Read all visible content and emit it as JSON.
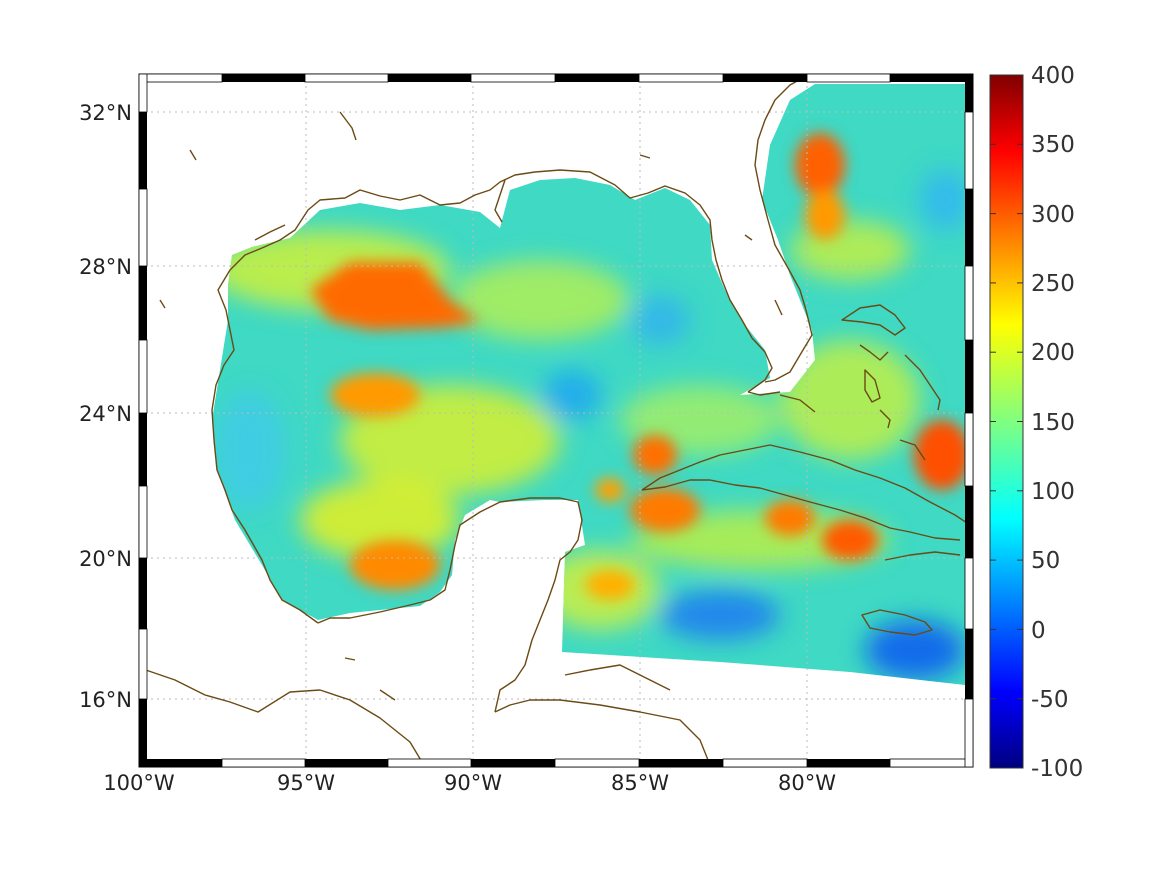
{
  "map": {
    "lon_range": [
      -100,
      -75.5
    ],
    "lat_range": [
      14.3,
      33
    ],
    "x_ticks": [
      {
        "lon": -100,
        "label": "100°W"
      },
      {
        "lon": -95,
        "label": "95°W"
      },
      {
        "lon": -90,
        "label": "90°W"
      },
      {
        "lon": -85,
        "label": "85°W"
      },
      {
        "lon": -80,
        "label": "80°W"
      }
    ],
    "y_ticks": [
      {
        "lat": 32,
        "label": "32°N"
      },
      {
        "lat": 28,
        "label": "28°N"
      },
      {
        "lat": 24,
        "label": "24°N"
      },
      {
        "lat": 20,
        "label": "20°N"
      },
      {
        "lat": 16,
        "label": "16°N"
      }
    ],
    "grid": true,
    "coast_color": "#6b4a14",
    "colormap": "jet",
    "field_hotspots": [
      {
        "name": "western Gulf maximum",
        "lon": -92.7,
        "lat": 27.2,
        "value": 290
      },
      {
        "name": "central-west patch",
        "lon": -93.2,
        "lat": 24.5,
        "value": 245
      },
      {
        "name": "Bay of Campeche",
        "lon": -92.2,
        "lat": 19.8,
        "value": 245
      },
      {
        "name": "off Georgia/Carolina",
        "lon": -79.6,
        "lat": 30.3,
        "value": 275
      },
      {
        "name": "west Cuba",
        "lon": -84.6,
        "lat": 22.6,
        "value": 260
      },
      {
        "name": "south of Cuba",
        "lon": -84.0,
        "lat": 21.3,
        "value": 255
      },
      {
        "name": "near Hispaniola",
        "lon": -78.3,
        "lat": 20.7,
        "value": 275
      },
      {
        "name": "east of Bahamas",
        "lon": -76.0,
        "lat": 22.9,
        "value": 290
      }
    ],
    "field_lows": [
      {
        "name": "central Gulf",
        "lon": -87.6,
        "lat": 24.6,
        "value": 60
      },
      {
        "name": "Caribbean south",
        "lon": -81.5,
        "lat": 17.6,
        "value": 40
      },
      {
        "name": "near Jamaica east",
        "lon": -76.3,
        "lat": 17.2,
        "value": 30
      }
    ]
  },
  "colorbar": {
    "min": -100,
    "max": 400,
    "ticks": [
      "400",
      "350",
      "300",
      "250",
      "200",
      "150",
      "100",
      "50",
      "0",
      "-50",
      "-100"
    ]
  }
}
